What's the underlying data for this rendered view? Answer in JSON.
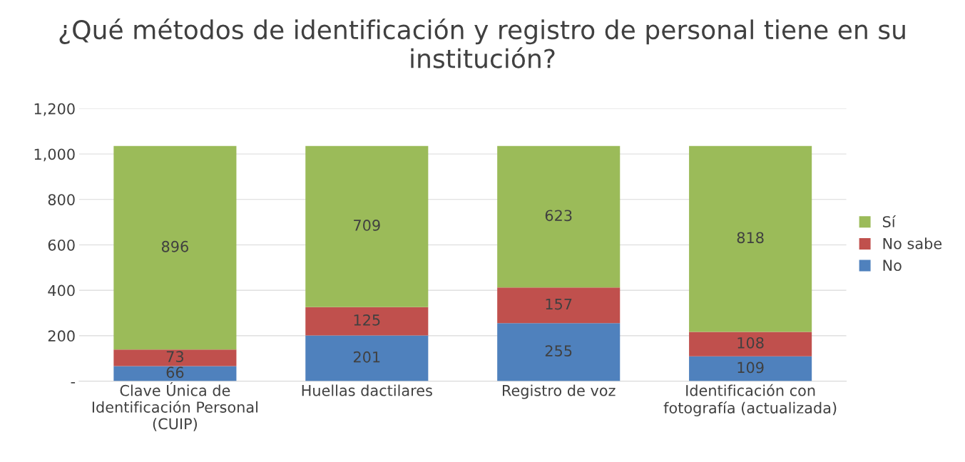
{
  "chart_data": {
    "type": "bar",
    "title": "¿Qué métodos de identificación y registro de personal tiene en su institución?",
    "categories": [
      "Clave Única de\nIdentificación Personal\n(CUIP)",
      "Huellas dactilares",
      "Registro de voz",
      "Identificación con\nfotografía (actualizada)"
    ],
    "stacked": true,
    "series": [
      {
        "name": "No",
        "color": "#4f81bd",
        "values": [
          66,
          201,
          255,
          109
        ]
      },
      {
        "name": "No sabe",
        "color": "#c0504d",
        "values": [
          73,
          125,
          157,
          108
        ]
      },
      {
        "name": "Sí",
        "color": "#9bbb59",
        "values": [
          896,
          709,
          623,
          818
        ]
      }
    ],
    "ylim": [
      0,
      1200
    ],
    "yticks": [
      {
        "value": 0,
        "label": "-"
      },
      200,
      400,
      600,
      800,
      {
        "value": 1000,
        "label": "1,000"
      },
      {
        "value": 1200,
        "label": "1,200"
      }
    ],
    "grid": "y",
    "legend": "right",
    "data_labels": true
  }
}
